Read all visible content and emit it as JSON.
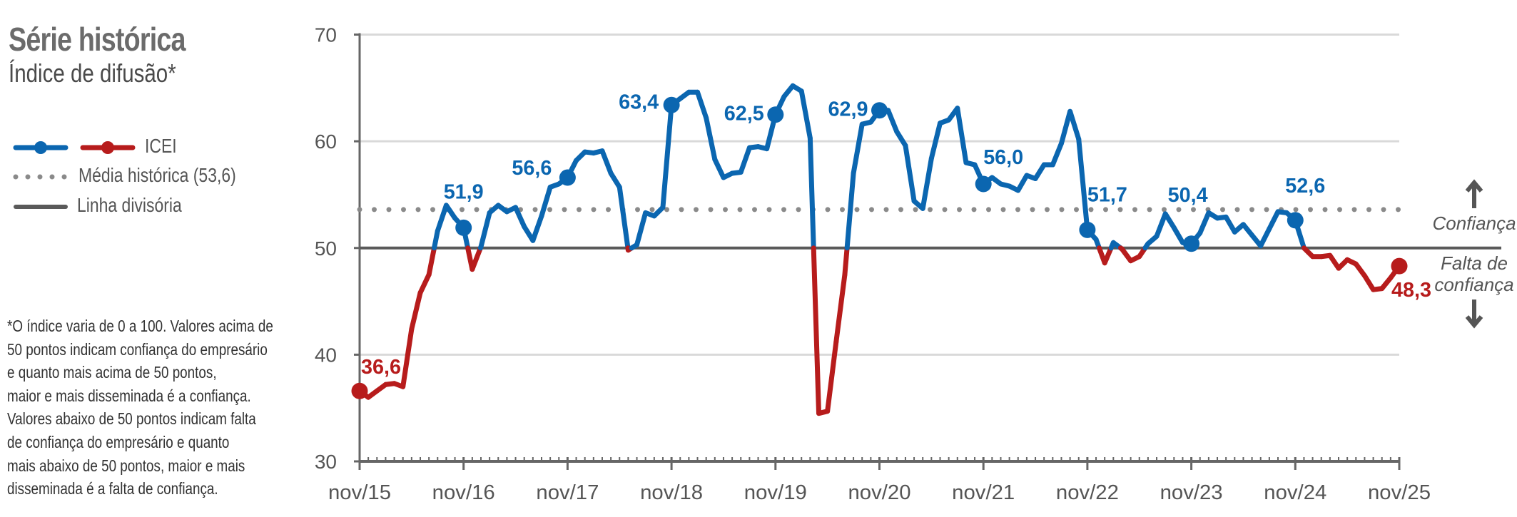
{
  "header": {
    "title": "Série histórica",
    "subtitle": "Índice de difusão*"
  },
  "legend": {
    "series": "ICEI",
    "average": "Média histórica (53,6)",
    "divider": "Linha divisória"
  },
  "footnote": [
    "*O índice varia de 0 a 100. Valores acima de",
    "50 pontos indicam confiança do empresário",
    "e quanto mais acima de 50 pontos,",
    "maior e mais disseminada é a confiança.",
    "Valores abaixo de 50 pontos indicam falta",
    "de confiança do empresário e quanto",
    "mais abaixo de 50 pontos, maior e mais",
    "disseminada é a falta de confiança."
  ],
  "zones": {
    "above": "Confiança",
    "below_line1": "Falta de",
    "below_line2": "confiança"
  },
  "colors": {
    "above": "#0b66b0",
    "below": "#b71c1c",
    "axis": "#666666",
    "grid": "#d9d9d9",
    "average": "#8a8a8a"
  },
  "chart_data": {
    "type": "line",
    "title": "Série histórica",
    "subtitle": "Índice de difusão*",
    "series_name": "ICEI",
    "frequency": "monthly",
    "start": "nov/15",
    "end": "nov/25",
    "ylim": [
      30,
      70
    ],
    "yticks": [
      "30",
      "40",
      "50",
      "60",
      "70"
    ],
    "xticks": [
      "nov/15",
      "nov/16",
      "nov/17",
      "nov/18",
      "nov/19",
      "nov/20",
      "nov/21",
      "nov/22",
      "nov/23",
      "nov/24",
      "nov/25"
    ],
    "threshold": 50,
    "average": 53.6,
    "values": [
      36.6,
      36.0,
      36.6,
      37.2,
      37.3,
      37.0,
      42.4,
      45.8,
      47.5,
      51.6,
      54.0,
      52.8,
      51.9,
      48.0,
      50.1,
      53.3,
      54.0,
      53.4,
      53.8,
      52.0,
      50.7,
      53.0,
      55.7,
      56.0,
      56.6,
      58.2,
      59.0,
      58.9,
      59.1,
      57.0,
      55.7,
      49.8,
      50.3,
      53.3,
      53.0,
      53.8,
      63.4,
      64.0,
      64.6,
      64.6,
      62.2,
      58.3,
      56.6,
      57.0,
      57.1,
      59.4,
      59.5,
      59.3,
      62.5,
      64.2,
      65.2,
      64.7,
      60.3,
      34.5,
      34.7,
      41.2,
      47.5,
      57.0,
      61.6,
      61.8,
      62.9,
      62.9,
      60.9,
      59.6,
      54.4,
      53.7,
      58.4,
      61.7,
      62.0,
      63.1,
      58.0,
      57.8,
      56.0,
      56.6,
      56.0,
      55.8,
      55.4,
      56.8,
      56.5,
      57.8,
      57.8,
      59.8,
      62.8,
      60.2,
      51.7,
      50.8,
      48.6,
      50.5,
      49.9,
      48.8,
      49.2,
      50.4,
      51.1,
      53.2,
      51.9,
      50.5,
      50.4,
      51.4,
      53.3,
      52.8,
      52.9,
      51.5,
      52.2,
      51.2,
      50.2,
      51.8,
      53.4,
      53.3,
      52.6,
      50.0,
      49.2,
      49.2,
      49.3,
      48.1,
      48.9,
      48.5,
      47.4,
      46.1,
      46.2,
      47.2,
      48.3
    ],
    "annotations": [
      {
        "label": "36,6",
        "x": "nov/15",
        "value": 36.6
      },
      {
        "label": "51,9",
        "x": "nov/16",
        "value": 51.9
      },
      {
        "label": "56,6",
        "x": "nov/17",
        "value": 56.6
      },
      {
        "label": "63,4",
        "x": "nov/18",
        "value": 63.4
      },
      {
        "label": "62,5",
        "x": "nov/19",
        "value": 62.5
      },
      {
        "label": "62,9",
        "x": "nov/20",
        "value": 62.9
      },
      {
        "label": "56,0",
        "x": "nov/21",
        "value": 56.0
      },
      {
        "label": "51,7",
        "x": "nov/22",
        "value": 51.7
      },
      {
        "label": "50,4",
        "x": "nov/23",
        "value": 50.4
      },
      {
        "label": "52,6",
        "x": "nov/24",
        "value": 52.6
      },
      {
        "label": "48,3",
        "x": "nov/25",
        "value": 48.3
      }
    ]
  }
}
